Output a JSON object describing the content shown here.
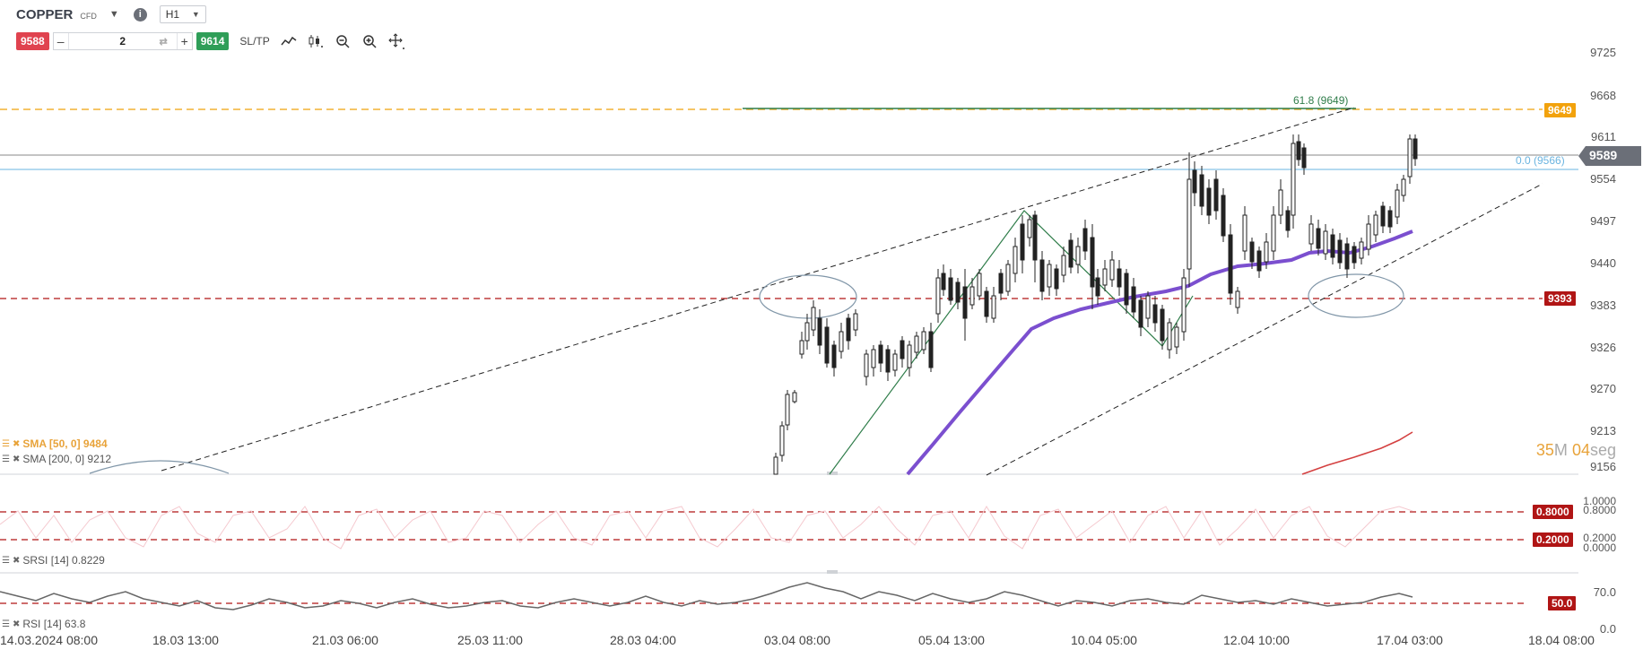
{
  "header": {
    "symbol": "COPPER",
    "symbol_type": "CFD",
    "timeframe": "H1"
  },
  "trade": {
    "sell_price": "9588",
    "buy_price": "9614",
    "quantity": "2",
    "sltp_label": "SL/TP"
  },
  "price_axis": [
    "9725",
    "9668",
    "9611",
    "9554",
    "9497",
    "9440",
    "9383",
    "9326",
    "9270",
    "9213",
    "9156"
  ],
  "tags": {
    "fib_level": "9649",
    "current_price": "9589",
    "support": "9393"
  },
  "fib": {
    "level_618": "61.8 (9649)",
    "level_0": "0.0 (9566)"
  },
  "indicators": {
    "sma50": "SMA [50, 0] 9484",
    "sma200": "SMA [200, 0] 9212",
    "srsi": "SRSI [14] 0.8229",
    "rsi": "RSI [14] 63.8"
  },
  "timer": {
    "minutes": "35",
    "minutes_unit": "M",
    "seconds": "04",
    "seconds_unit": "seg"
  },
  "srsi_axis": {
    "top1": "1.0000",
    "top2": "0.8000",
    "mid1": "0.2000",
    "mid2": "0.0000",
    "tag_high": "0.8000",
    "tag_low": "0.2000"
  },
  "rsi_axis": {
    "top": "70.0",
    "bottom": "0.0",
    "tag_mid": "50.0"
  },
  "dates": [
    "14.03.2024 08:00",
    "18.03 13:00",
    "21.03 06:00",
    "25.03 11:00",
    "28.03 04:00",
    "03.04 08:00",
    "05.04 13:00",
    "10.04 05:00",
    "12.04 10:00",
    "17.04 03:00",
    "18.04 08:00"
  ],
  "colors": {
    "sell": "#e0434f",
    "buy": "#2f9e58",
    "fib_tag": "#f2a20c",
    "support_tag": "#b01515",
    "sma50": "#7b4fcf",
    "sma200": "#d44040"
  }
}
